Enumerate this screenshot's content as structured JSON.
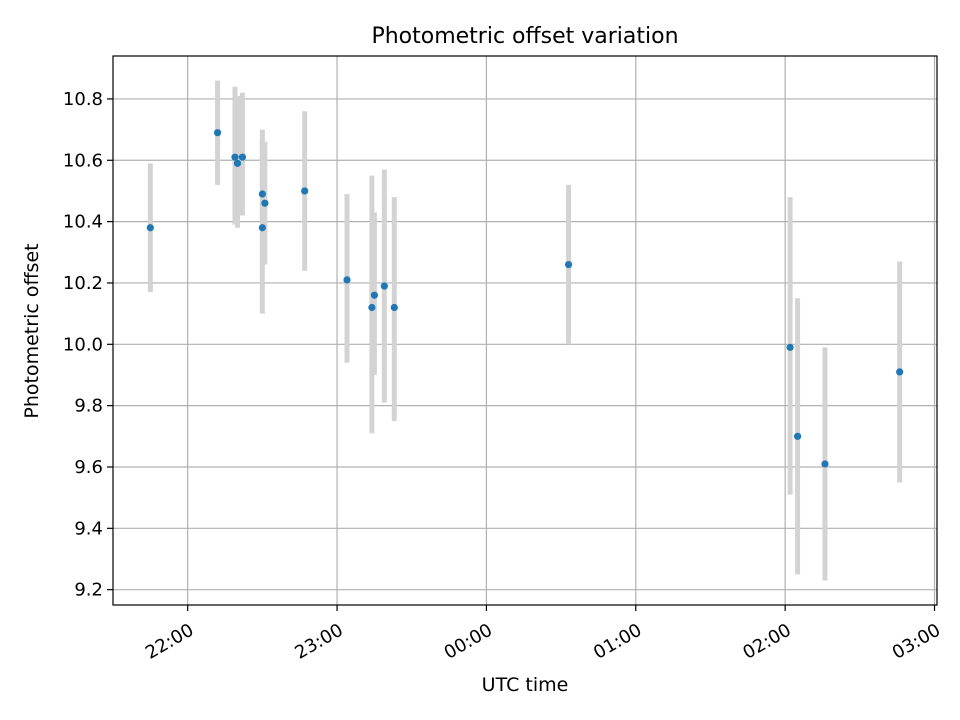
{
  "chart_data": {
    "type": "scatter",
    "title": "Photometric offset variation",
    "xlabel": "UTC time",
    "ylabel": "Photometric offset",
    "x_ticks": [
      "22:00",
      "23:00",
      "00:00",
      "01:00",
      "02:00",
      "03:00"
    ],
    "y_ticks": [
      "9.2",
      "9.4",
      "9.6",
      "9.8",
      "10.0",
      "10.2",
      "10.4",
      "10.6",
      "10.8"
    ],
    "xlim": [
      "21:30",
      "03:01"
    ],
    "ylim": [
      9.15,
      10.94
    ],
    "grid": true,
    "errorbar_color": "#d3d3d3",
    "marker_color": "#1f77b4",
    "points": [
      {
        "x": "21:45",
        "y": 10.38,
        "err_low": 10.17,
        "err_high": 10.59
      },
      {
        "x": "22:12",
        "y": 10.69,
        "err_low": 10.52,
        "err_high": 10.86
      },
      {
        "x": "22:19",
        "y": 10.61,
        "err_low": 10.39,
        "err_high": 10.84
      },
      {
        "x": "22:20",
        "y": 10.59,
        "err_low": 10.38,
        "err_high": 10.81
      },
      {
        "x": "22:22",
        "y": 10.61,
        "err_low": 10.42,
        "err_high": 10.82
      },
      {
        "x": "22:30",
        "y": 10.38,
        "err_low": 10.1,
        "err_high": 10.67
      },
      {
        "x": "22:30",
        "y": 10.49,
        "err_low": 10.39,
        "err_high": 10.7
      },
      {
        "x": "22:31",
        "y": 10.46,
        "err_low": 10.26,
        "err_high": 10.66
      },
      {
        "x": "22:47",
        "y": 10.5,
        "err_low": 10.24,
        "err_high": 10.76
      },
      {
        "x": "23:04",
        "y": 10.21,
        "err_low": 9.94,
        "err_high": 10.49
      },
      {
        "x": "23:14",
        "y": 10.12,
        "err_low": 9.71,
        "err_high": 10.55
      },
      {
        "x": "23:15",
        "y": 10.16,
        "err_low": 9.9,
        "err_high": 10.43
      },
      {
        "x": "23:19",
        "y": 10.19,
        "err_low": 9.81,
        "err_high": 10.57
      },
      {
        "x": "23:23",
        "y": 10.12,
        "err_low": 9.75,
        "err_high": 10.48
      },
      {
        "x": "00:33",
        "y": 10.26,
        "err_low": 10.0,
        "err_high": 10.52
      },
      {
        "x": "02:02",
        "y": 9.99,
        "err_low": 9.51,
        "err_high": 10.48
      },
      {
        "x": "02:05",
        "y": 9.7,
        "err_low": 9.25,
        "err_high": 10.15
      },
      {
        "x": "02:16",
        "y": 9.61,
        "err_low": 9.23,
        "err_high": 9.99
      },
      {
        "x": "02:46",
        "y": 9.91,
        "err_low": 9.55,
        "err_high": 10.27
      }
    ]
  }
}
